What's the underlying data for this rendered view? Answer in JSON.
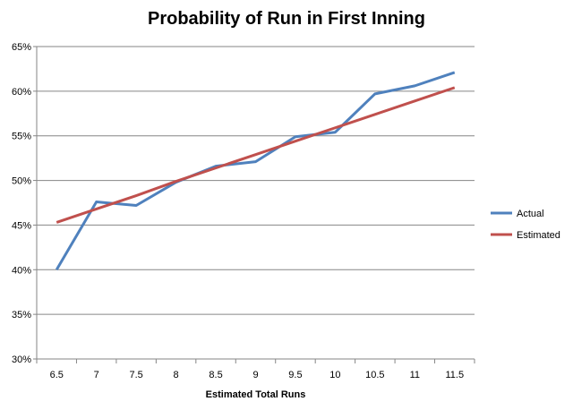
{
  "chart_data": {
    "type": "line",
    "title": "Probability of Run in First Inning",
    "xlabel": "Estimated Total Runs",
    "ylabel": "",
    "categories": [
      "6.5",
      "7",
      "7.5",
      "8",
      "8.5",
      "9",
      "9.5",
      "10",
      "10.5",
      "11",
      "11.5"
    ],
    "ylim": [
      30,
      65
    ],
    "yticks": [
      "30%",
      "35%",
      "40%",
      "45%",
      "50%",
      "55%",
      "60%",
      "65%"
    ],
    "grid": true,
    "legend_position": "right",
    "series": [
      {
        "name": "Actual",
        "color": "#4F81BD",
        "values": [
          40.0,
          47.6,
          47.2,
          49.8,
          51.6,
          52.1,
          54.9,
          55.4,
          59.7,
          60.6,
          62.1
        ]
      },
      {
        "name": "Estimated",
        "color": "#C0504D",
        "values": [
          45.3,
          46.8,
          48.3,
          49.9,
          51.4,
          52.9,
          54.4,
          55.9,
          57.4,
          58.9,
          60.4
        ]
      }
    ]
  }
}
